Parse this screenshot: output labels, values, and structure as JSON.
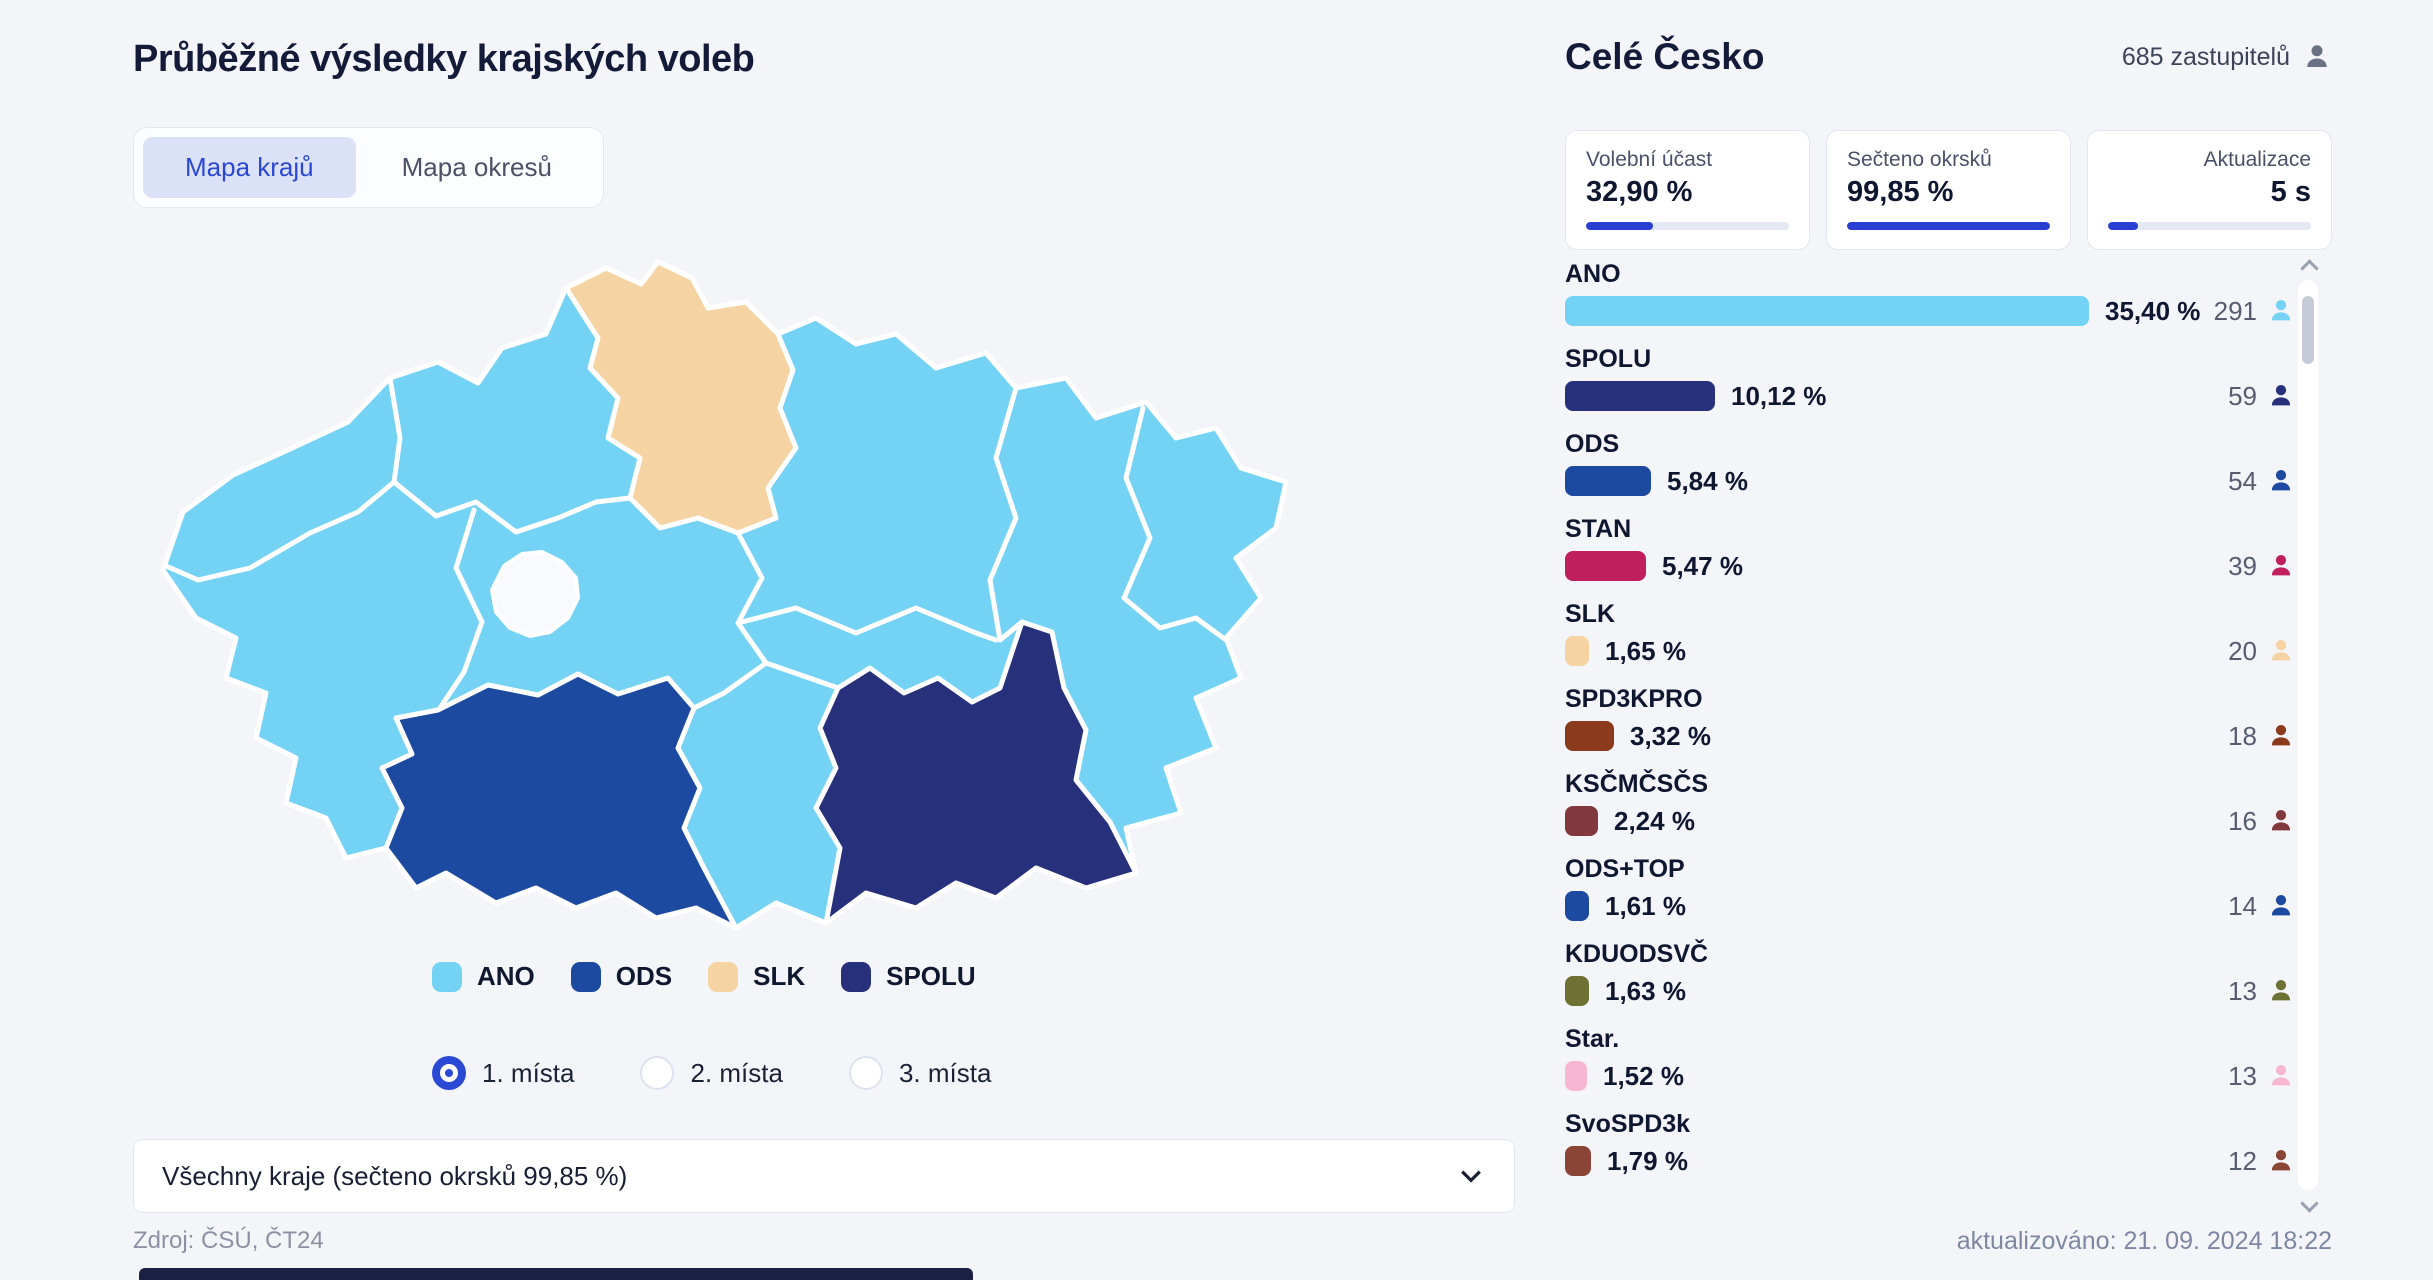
{
  "left": {
    "title": "Průběžné výsledky krajských voleb",
    "tabs": [
      {
        "label": "Mapa krajů",
        "active": true
      },
      {
        "label": "Mapa okresů",
        "active": false
      }
    ],
    "legend": [
      {
        "label": "ANO",
        "color": "#74d2f4"
      },
      {
        "label": "ODS",
        "color": "#1c4aa0"
      },
      {
        "label": "SLK",
        "color": "#f5d3a2"
      },
      {
        "label": "SPOLU",
        "color": "#27307a"
      }
    ],
    "view_options": [
      {
        "label": "1. místa",
        "selected": true
      },
      {
        "label": "2. místa",
        "selected": false
      },
      {
        "label": "3. místa",
        "selected": false
      }
    ],
    "region_select": {
      "value": "Všechny kraje (sečteno okrsků 99,85 %)"
    },
    "source": "Zdroj: ČSÚ, ČT24"
  },
  "right": {
    "title": "Celé Česko",
    "seats": "685 zastupitelů",
    "stats": [
      {
        "label": "Volební účast",
        "value": "32,90 %",
        "progress": 33,
        "align": "left"
      },
      {
        "label": "Sečteno okrsků",
        "value": "99,85 %",
        "progress": 100,
        "align": "left"
      },
      {
        "label": "Aktualizace",
        "value": "5 s",
        "progress": 15,
        "align": "right"
      }
    ],
    "parties": [
      {
        "name": "ANO",
        "pct": 35.4,
        "pct_label": "35,40 %",
        "count": "291",
        "color": "#74d2f4"
      },
      {
        "name": "SPOLU",
        "pct": 10.12,
        "pct_label": "10,12 %",
        "count": "59",
        "color": "#27307a"
      },
      {
        "name": "ODS",
        "pct": 5.84,
        "pct_label": "5,84 %",
        "count": "54",
        "color": "#1c4aa0"
      },
      {
        "name": "STAN",
        "pct": 5.47,
        "pct_label": "5,47 %",
        "count": "39",
        "color": "#c01f5e"
      },
      {
        "name": "SLK",
        "pct": 1.65,
        "pct_label": "1,65 %",
        "count": "20",
        "color": "#f5d3a2"
      },
      {
        "name": "SPD3KPRO",
        "pct": 3.32,
        "pct_label": "3,32 %",
        "count": "18",
        "color": "#8c3a1c"
      },
      {
        "name": "KSČMČSČS",
        "pct": 2.24,
        "pct_label": "2,24 %",
        "count": "16",
        "color": "#82393d"
      },
      {
        "name": "ODS+TOP",
        "pct": 1.61,
        "pct_label": "1,61 %",
        "count": "14",
        "color": "#1c4aa0"
      },
      {
        "name": "KDUODSVČ",
        "pct": 1.63,
        "pct_label": "1,63 %",
        "count": "13",
        "color": "#6d7134"
      },
      {
        "name": "Star.",
        "pct": 1.52,
        "pct_label": "1,52 %",
        "count": "13",
        "color": "#f7b7d2"
      },
      {
        "name": "SvoSPD3k",
        "pct": 1.79,
        "pct_label": "1,79 %",
        "count": "12",
        "color": "#8a4537"
      }
    ],
    "updated": "aktualizováno: 21. 09. 2024 18:22"
  },
  "map": {
    "default_party": "ANO",
    "hole_color": "#f8fafd",
    "border_color": "#ffffff",
    "party_colors": {
      "ANO": "#74d2f4",
      "ODS": "#1c4aa0",
      "SLK": "#f5d3a2",
      "SPOLU": "#27307a"
    },
    "regions": {
      "north-region": "SLK",
      "southwest-region": "ODS",
      "southeast-region": "SPOLU"
    }
  },
  "icons": {
    "seats": "person-icon",
    "party_count": "person-icon",
    "select": "chevron-down-icon",
    "scroll_up": "chevron-up-icon",
    "scroll_down": "chevron-down-icon"
  }
}
